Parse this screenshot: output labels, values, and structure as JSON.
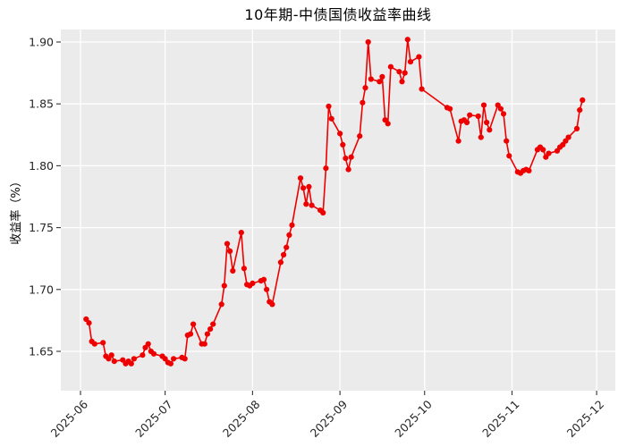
{
  "chart": {
    "title": "10年期-中债国债收益率曲线",
    "y_axis_label": "收益率（%）"
  },
  "chart_data": {
    "type": "line",
    "title": "10年期-中债国债收益率曲线",
    "xlabel": "",
    "ylabel": "收益率（%）",
    "legend_position": "none",
    "grid": true,
    "plot_background": "#ebebeb",
    "grid_color": "#ffffff",
    "line_color": "#ee0000",
    "marker": "circle",
    "x_tick_labels": [
      "2025-06",
      "2025-07",
      "2025-08",
      "2025-09",
      "2025-10",
      "2025-11",
      "2025-12"
    ],
    "y_ticks": [
      1.65,
      1.7,
      1.75,
      1.8,
      1.85,
      1.9
    ],
    "y_tick_labels": [
      "1.65",
      "1.70",
      "1.75",
      "1.80",
      "1.85",
      "1.90"
    ],
    "ylim": [
      1.618,
      1.912
    ],
    "series": [
      {
        "name": "10年期-中债国债收益率",
        "x": [
          "2025-06-03",
          "2025-06-04",
          "2025-06-05",
          "2025-06-06",
          "2025-06-09",
          "2025-06-10",
          "2025-06-11",
          "2025-06-12",
          "2025-06-13",
          "2025-06-16",
          "2025-06-17",
          "2025-06-18",
          "2025-06-19",
          "2025-06-20",
          "2025-06-23",
          "2025-06-24",
          "2025-06-25",
          "2025-06-26",
          "2025-06-27",
          "2025-06-30",
          "2025-07-01",
          "2025-07-02",
          "2025-07-03",
          "2025-07-04",
          "2025-07-07",
          "2025-07-08",
          "2025-07-09",
          "2025-07-10",
          "2025-07-11",
          "2025-07-14",
          "2025-07-15",
          "2025-07-16",
          "2025-07-17",
          "2025-07-18",
          "2025-07-21",
          "2025-07-22",
          "2025-07-23",
          "2025-07-24",
          "2025-07-25",
          "2025-07-28",
          "2025-07-29",
          "2025-07-30",
          "2025-07-31",
          "2025-08-01",
          "2025-08-04",
          "2025-08-05",
          "2025-08-06",
          "2025-08-07",
          "2025-08-08",
          "2025-08-11",
          "2025-08-12",
          "2025-08-13",
          "2025-08-14",
          "2025-08-15",
          "2025-08-18",
          "2025-08-19",
          "2025-08-20",
          "2025-08-21",
          "2025-08-22",
          "2025-08-25",
          "2025-08-26",
          "2025-08-27",
          "2025-08-28",
          "2025-08-29",
          "2025-09-01",
          "2025-09-02",
          "2025-09-03",
          "2025-09-04",
          "2025-09-05",
          "2025-09-08",
          "2025-09-09",
          "2025-09-10",
          "2025-09-11",
          "2025-09-12",
          "2025-09-15",
          "2025-09-16",
          "2025-09-17",
          "2025-09-18",
          "2025-09-19",
          "2025-09-22",
          "2025-09-23",
          "2025-09-24",
          "2025-09-25",
          "2025-09-26",
          "2025-09-29",
          "2025-09-30",
          "2025-10-09",
          "2025-10-10",
          "2025-10-13",
          "2025-10-14",
          "2025-10-15",
          "2025-10-16",
          "2025-10-17",
          "2025-10-20",
          "2025-10-21",
          "2025-10-22",
          "2025-10-23",
          "2025-10-24",
          "2025-10-27",
          "2025-10-28",
          "2025-10-29",
          "2025-10-30",
          "2025-10-31",
          "2025-11-03",
          "2025-11-04",
          "2025-11-05",
          "2025-11-06",
          "2025-11-07",
          "2025-11-10",
          "2025-11-11",
          "2025-11-12",
          "2025-11-13",
          "2025-11-14",
          "2025-11-17",
          "2025-11-18",
          "2025-11-19",
          "2025-11-20",
          "2025-11-21",
          "2025-11-24",
          "2025-11-25",
          "2025-11-26"
        ],
        "values": [
          1.676,
          1.673,
          1.658,
          1.656,
          1.657,
          1.646,
          1.644,
          1.647,
          1.642,
          1.643,
          1.64,
          1.642,
          1.64,
          1.644,
          1.647,
          1.653,
          1.656,
          1.65,
          1.648,
          1.646,
          1.644,
          1.641,
          1.64,
          1.644,
          1.645,
          1.644,
          1.663,
          1.664,
          1.672,
          1.656,
          1.656,
          1.664,
          1.668,
          1.672,
          1.688,
          1.703,
          1.737,
          1.731,
          1.715,
          1.746,
          1.717,
          1.704,
          1.703,
          1.705,
          1.707,
          1.708,
          1.7,
          1.69,
          1.688,
          1.722,
          1.728,
          1.734,
          1.744,
          1.752,
          1.79,
          1.782,
          1.769,
          1.783,
          1.768,
          1.764,
          1.762,
          1.798,
          1.848,
          1.838,
          1.826,
          1.817,
          1.806,
          1.797,
          1.807,
          1.824,
          1.851,
          1.863,
          1.9,
          1.87,
          1.868,
          1.872,
          1.837,
          1.834,
          1.88,
          1.876,
          1.868,
          1.875,
          1.902,
          1.884,
          1.888,
          1.862,
          1.847,
          1.846,
          1.82,
          1.836,
          1.837,
          1.835,
          1.841,
          1.84,
          1.823,
          1.849,
          1.835,
          1.829,
          1.849,
          1.846,
          1.842,
          1.82,
          1.808,
          1.795,
          1.794,
          1.796,
          1.797,
          1.796,
          1.813,
          1.815,
          1.813,
          1.807,
          1.81,
          1.812,
          1.815,
          1.817,
          1.82,
          1.823,
          1.83,
          1.845,
          1.853
        ]
      }
    ]
  }
}
